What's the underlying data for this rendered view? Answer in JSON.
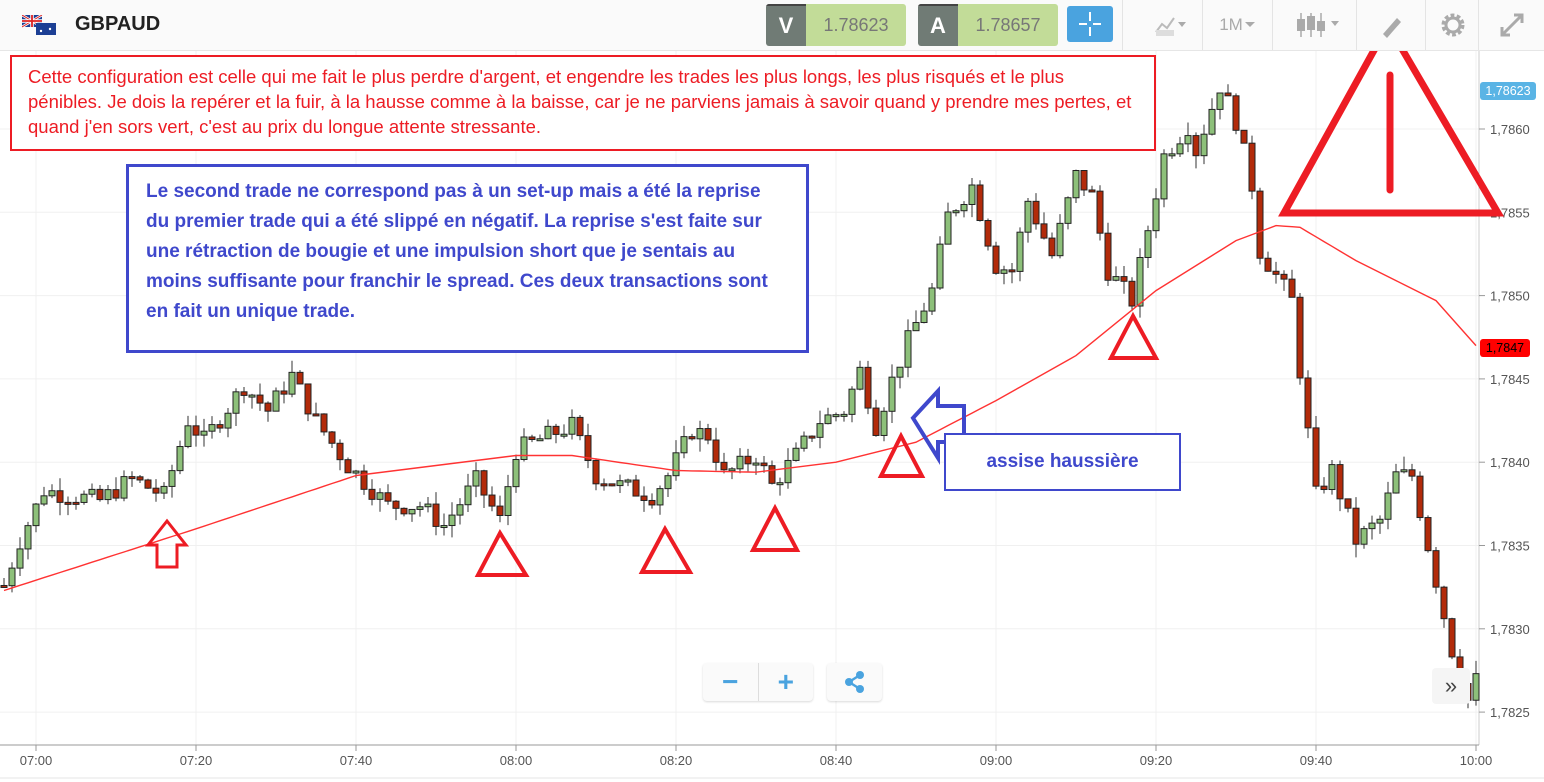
{
  "header": {
    "symbol": "GBPAUD",
    "flag_icon": "gb-au-flag-icon",
    "bid_label": "V",
    "bid_value": "1.78623",
    "ask_label": "A",
    "ask_value": "1.78657",
    "timeframe": "1M",
    "tools": [
      "crosshair-icon",
      "chart-type-icon",
      "timeframe-dropdown",
      "candlestick-icon",
      "draw-icon",
      "gear-icon",
      "expand-icon"
    ]
  },
  "annotations": {
    "red_note": "Cette configuration est celle qui me fait le plus perdre d'argent, et engendre les trades les plus longs, les plus risqués et le plus pénibles. Je dois la repérer et la fuir, à la hausse comme à la baisse, car je ne parviens jamais à savoir quand y prendre mes pertes, et quand j'en sors vert, c'est au prix du longue attente stressante.",
    "blue_note": "Le second trade ne correspond pas à un set-up mais a été la reprise du premier trade qui a été slippé en négatif. La reprise s'est faite sur une rétraction de bougie et une impulsion short que je sentais au moins suffisante pour franchir le spread. Ces deux transactions sont en fait un unique trade.",
    "assise_note": "assise haussière"
  },
  "controls": {
    "zoom_out": "−",
    "zoom_in": "+",
    "scroll_right": "»"
  },
  "colors": {
    "up": "#8dc07a",
    "down": "#b22a0a",
    "ma": "#ff3333",
    "annotation_red": "#ed1c24",
    "annotation_blue": "#3f48cc",
    "accent": "#4aa3df"
  },
  "chart_data": {
    "type": "candlestick",
    "interval": "1 minute",
    "x_ticks": [
      "07:00",
      "07:20",
      "07:40",
      "08:00",
      "08:20",
      "08:40",
      "09:00",
      "09:20",
      "09:40",
      "10:00"
    ],
    "y_ticks": [
      "1,7825",
      "1,7830",
      "1,7835",
      "1,7840",
      "1,7845",
      "1,7850",
      "1,7855",
      "1,7860"
    ],
    "ylim": [
      1.78235,
      1.78655
    ],
    "xlim": [
      "06:56",
      "10:00"
    ],
    "grid": true,
    "current_price_label": "1,78623",
    "current_price": 1.78623,
    "ma_label": "1,7847",
    "ma_last": 1.7847,
    "price_path": [
      [
        "06:56",
        1.78326
      ],
      [
        "06:58",
        1.78353
      ],
      [
        "07:01",
        1.78383
      ],
      [
        "07:08",
        1.78377
      ],
      [
        "07:12",
        1.7839
      ],
      [
        "07:16",
        1.7838
      ],
      [
        "07:19",
        1.78425
      ],
      [
        "07:21",
        1.78413
      ],
      [
        "07:26",
        1.78446
      ],
      [
        "07:29",
        1.78431
      ],
      [
        "07:32",
        1.78452
      ],
      [
        "07:35",
        1.78425
      ],
      [
        "07:39",
        1.78398
      ],
      [
        "07:44",
        1.78374
      ],
      [
        "07:48",
        1.78374
      ],
      [
        "07:51",
        1.78362
      ],
      [
        "07:55",
        1.78389
      ],
      [
        "07:58",
        1.78365
      ],
      [
        "08:00",
        1.78407
      ],
      [
        "08:04",
        1.78416
      ],
      [
        "08:07",
        1.78422
      ],
      [
        "08:10",
        1.78392
      ],
      [
        "08:13",
        1.78386
      ],
      [
        "08:17",
        1.7838
      ],
      [
        "08:19",
        1.78392
      ],
      [
        "08:22",
        1.78419
      ],
      [
        "08:24",
        1.78416
      ],
      [
        "08:26",
        1.78392
      ],
      [
        "08:30",
        1.78404
      ],
      [
        "08:32",
        1.78386
      ],
      [
        "08:35",
        1.78404
      ],
      [
        "08:38",
        1.78425
      ],
      [
        "08:41",
        1.78431
      ],
      [
        "08:43",
        1.78455
      ],
      [
        "08:45",
        1.78422
      ],
      [
        "08:47",
        1.78449
      ],
      [
        "08:49",
        1.78473
      ],
      [
        "08:52",
        1.78503
      ],
      [
        "08:54",
        1.78548
      ],
      [
        "08:57",
        1.78566
      ],
      [
        "09:00",
        1.78518
      ],
      [
        "09:02",
        1.78515
      ],
      [
        "09:04",
        1.78557
      ],
      [
        "09:07",
        1.78524
      ],
      [
        "09:10",
        1.78572
      ],
      [
        "09:12",
        1.7856
      ],
      [
        "09:14",
        1.78515
      ],
      [
        "09:17",
        1.78497
      ],
      [
        "09:18",
        1.78518
      ],
      [
        "09:21",
        1.78584
      ],
      [
        "09:24",
        1.78602
      ],
      [
        "09:25",
        1.78587
      ],
      [
        "09:28",
        1.78626
      ],
      [
        "09:30",
        1.78605
      ],
      [
        "09:32",
        1.78566
      ],
      [
        "09:33",
        1.78527
      ],
      [
        "09:37",
        1.78497
      ],
      [
        "09:38",
        1.78455
      ],
      [
        "09:40",
        1.7838
      ],
      [
        "09:42",
        1.78395
      ],
      [
        "09:45",
        1.78353
      ],
      [
        "09:48",
        1.78365
      ],
      [
        "09:50",
        1.78392
      ],
      [
        "09:52",
        1.78392
      ],
      [
        "09:55",
        1.78329
      ],
      [
        "09:57",
        1.78287
      ],
      [
        "09:59",
        1.78257
      ],
      [
        "10:00",
        1.78269
      ]
    ],
    "moving_average": [
      [
        "06:56",
        1.78323
      ],
      [
        "07:20",
        1.7836
      ],
      [
        "07:40",
        1.78392
      ],
      [
        "08:00",
        1.78404
      ],
      [
        "08:07",
        1.78404
      ],
      [
        "08:20",
        1.78395
      ],
      [
        "08:30",
        1.78394
      ],
      [
        "08:40",
        1.784
      ],
      [
        "08:50",
        1.78412
      ],
      [
        "09:00",
        1.78437
      ],
      [
        "09:10",
        1.78464
      ],
      [
        "09:20",
        1.78503
      ],
      [
        "09:30",
        1.78533
      ],
      [
        "09:35",
        1.78542
      ],
      [
        "09:38",
        1.78541
      ],
      [
        "09:45",
        1.78521
      ],
      [
        "09:55",
        1.78497
      ],
      [
        "10:00",
        1.7847
      ]
    ]
  }
}
